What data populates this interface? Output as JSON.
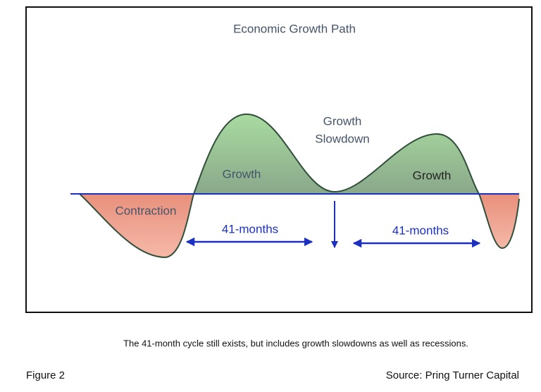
{
  "diagram": {
    "title": "Economic Growth Path",
    "labels": {
      "growth_left": "Growth",
      "slowdown_line1": "Growth",
      "slowdown_line2": "Slowdown",
      "growth_right": "Growth",
      "contraction": "Contraction",
      "span_left": "41-months",
      "span_right": "41-months"
    }
  },
  "caption": "The 41-month cycle still exists, but includes growth slowdowns as well as recessions.",
  "figure_label": "Figure 2",
  "source": "Source: Pring Turner Capital"
}
